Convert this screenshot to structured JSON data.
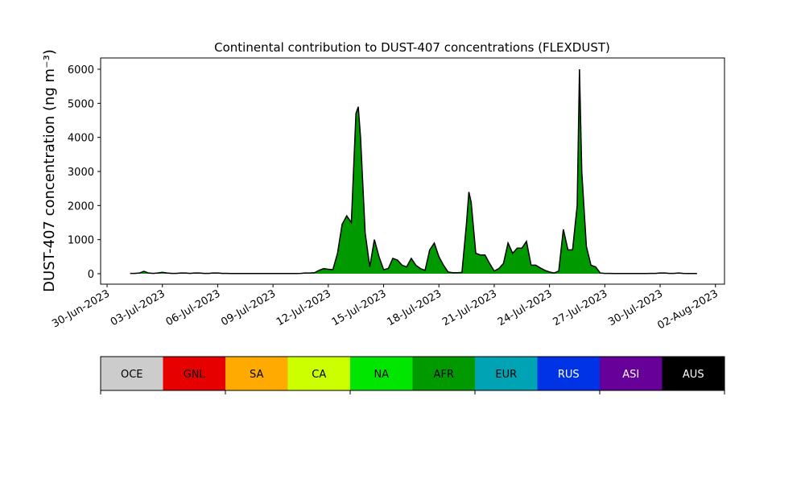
{
  "chart_data": {
    "type": "stacked_area",
    "title": "Continental contribution to DUST-407 concentrations (FLEXDUST)",
    "y_label": "DUST-407 concentration (ng m⁻³)",
    "x": [
      "2023-07-01 06:00",
      "2023-07-01 12:00",
      "2023-07-01 18:00",
      "2023-07-02 00:00",
      "2023-07-02 06:00",
      "2023-07-02 12:00",
      "2023-07-02 18:00",
      "2023-07-03 00:00",
      "2023-07-03 06:00",
      "2023-07-03 12:00",
      "2023-07-03 18:00",
      "2023-07-04 00:00",
      "2023-07-04 06:00",
      "2023-07-04 12:00",
      "2023-07-04 18:00",
      "2023-07-05 00:00",
      "2023-07-05 06:00",
      "2023-07-05 12:00",
      "2023-07-05 18:00",
      "2023-07-06 00:00",
      "2023-07-06 06:00",
      "2023-07-06 12:00",
      "2023-07-06 18:00",
      "2023-07-07 00:00",
      "2023-07-07 06:00",
      "2023-07-07 12:00",
      "2023-07-07 18:00",
      "2023-07-08 00:00",
      "2023-07-08 06:00",
      "2023-07-08 12:00",
      "2023-07-08 18:00",
      "2023-07-09 00:00",
      "2023-07-09 06:00",
      "2023-07-09 12:00",
      "2023-07-09 18:00",
      "2023-07-10 00:00",
      "2023-07-10 06:00",
      "2023-07-10 12:00",
      "2023-07-10 18:00",
      "2023-07-11 00:00",
      "2023-07-11 06:00",
      "2023-07-11 12:00",
      "2023-07-11 18:00",
      "2023-07-12 00:00",
      "2023-07-12 06:00",
      "2023-07-12 12:00",
      "2023-07-12 18:00",
      "2023-07-13 00:00",
      "2023-07-13 06:00",
      "2023-07-13 12:00",
      "2023-07-13 15:00",
      "2023-07-13 18:00",
      "2023-07-14 00:00",
      "2023-07-14 06:00",
      "2023-07-14 12:00",
      "2023-07-14 18:00",
      "2023-07-15 00:00",
      "2023-07-15 06:00",
      "2023-07-15 12:00",
      "2023-07-15 18:00",
      "2023-07-16 00:00",
      "2023-07-16 06:00",
      "2023-07-16 12:00",
      "2023-07-16 18:00",
      "2023-07-17 00:00",
      "2023-07-17 06:00",
      "2023-07-17 12:00",
      "2023-07-17 18:00",
      "2023-07-18 00:00",
      "2023-07-18 06:00",
      "2023-07-18 12:00",
      "2023-07-18 18:00",
      "2023-07-19 00:00",
      "2023-07-19 06:00",
      "2023-07-19 12:00",
      "2023-07-19 15:00",
      "2023-07-19 18:00",
      "2023-07-20 00:00",
      "2023-07-20 06:00",
      "2023-07-20 12:00",
      "2023-07-20 18:00",
      "2023-07-21 00:00",
      "2023-07-21 06:00",
      "2023-07-21 12:00",
      "2023-07-21 18:00",
      "2023-07-22 00:00",
      "2023-07-22 06:00",
      "2023-07-22 12:00",
      "2023-07-22 18:00",
      "2023-07-23 00:00",
      "2023-07-23 06:00",
      "2023-07-23 12:00",
      "2023-07-23 18:00",
      "2023-07-24 00:00",
      "2023-07-24 06:00",
      "2023-07-24 12:00",
      "2023-07-24 18:00",
      "2023-07-25 00:00",
      "2023-07-25 06:00",
      "2023-07-25 12:00",
      "2023-07-25 15:00",
      "2023-07-25 18:00",
      "2023-07-26 00:00",
      "2023-07-26 06:00",
      "2023-07-26 12:00",
      "2023-07-26 18:00",
      "2023-07-27 00:00",
      "2023-07-27 06:00",
      "2023-07-27 12:00",
      "2023-07-27 18:00",
      "2023-07-28 00:00",
      "2023-07-28 06:00",
      "2023-07-28 12:00",
      "2023-07-28 18:00",
      "2023-07-29 00:00",
      "2023-07-29 06:00",
      "2023-07-29 12:00",
      "2023-07-29 18:00",
      "2023-07-30 00:00",
      "2023-07-30 06:00",
      "2023-07-30 12:00",
      "2023-07-30 18:00",
      "2023-07-31 00:00",
      "2023-07-31 06:00",
      "2023-07-31 12:00",
      "2023-07-31 18:00",
      "2023-08-01 00:00"
    ],
    "series": [
      {
        "name": "AFR",
        "color": "#009900",
        "values": [
          10,
          10,
          20,
          70,
          20,
          10,
          20,
          40,
          20,
          10,
          10,
          20,
          20,
          10,
          20,
          20,
          10,
          10,
          20,
          20,
          10,
          10,
          5,
          5,
          5,
          5,
          5,
          5,
          5,
          5,
          5,
          5,
          5,
          5,
          5,
          5,
          5,
          10,
          20,
          20,
          30,
          100,
          150,
          130,
          120,
          600,
          1450,
          1700,
          1500,
          4700,
          4900,
          4000,
          1200,
          200,
          1000,
          500,
          120,
          150,
          450,
          400,
          250,
          200,
          450,
          250,
          150,
          100,
          700,
          900,
          500,
          250,
          50,
          30,
          30,
          40,
          1500,
          2400,
          2100,
          600,
          550,
          550,
          300,
          80,
          150,
          300,
          900,
          600,
          750,
          750,
          950,
          250,
          250,
          170,
          100,
          50,
          20,
          80,
          1300,
          700,
          700,
          2000,
          6000,
          3000,
          800,
          250,
          200,
          20,
          10,
          10,
          5,
          5,
          5,
          5,
          5,
          5,
          5,
          5,
          10,
          10,
          20,
          20,
          10,
          10,
          20,
          10,
          5,
          5,
          5
        ]
      }
    ],
    "xlim": [
      "2023-06-29 15:36",
      "2023-08-02 11:48"
    ],
    "xticks": [
      {
        "value": "2023-06-30",
        "label": "30-Jun-2023"
      },
      {
        "value": "2023-07-03",
        "label": "03-Jul-2023"
      },
      {
        "value": "2023-07-06",
        "label": "06-Jul-2023"
      },
      {
        "value": "2023-07-09",
        "label": "09-Jul-2023"
      },
      {
        "value": "2023-07-12",
        "label": "12-Jul-2023"
      },
      {
        "value": "2023-07-15",
        "label": "15-Jul-2023"
      },
      {
        "value": "2023-07-18",
        "label": "18-Jul-2023"
      },
      {
        "value": "2023-07-21",
        "label": "21-Jul-2023"
      },
      {
        "value": "2023-07-24",
        "label": "24-Jul-2023"
      },
      {
        "value": "2023-07-27",
        "label": "27-Jul-2023"
      },
      {
        "value": "2023-07-30",
        "label": "30-Jul-2023"
      },
      {
        "value": "2023-08-02",
        "label": "02-Aug-2023"
      }
    ],
    "ylim": [
      -307,
      6331
    ],
    "yticks": [
      0,
      1000,
      2000,
      3000,
      4000,
      5000,
      6000
    ],
    "colorbar": {
      "labels": [
        "OCE",
        "GNL",
        "SA",
        "CA",
        "NA",
        "AFR",
        "EUR",
        "RUS",
        "ASI",
        "AUS"
      ],
      "colors": [
        "#cccccc",
        "#e60000",
        "#ffaa00",
        "#ccff00",
        "#00e600",
        "#009900",
        "#00a3b3",
        "#0033e6",
        "#660099",
        "#000000"
      ]
    }
  }
}
